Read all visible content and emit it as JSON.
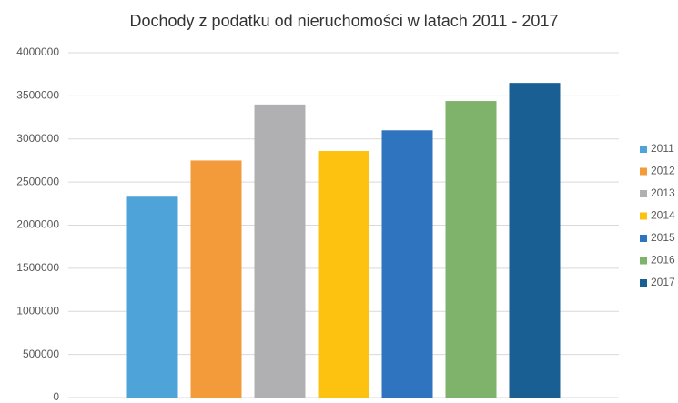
{
  "chart_data": {
    "type": "bar",
    "title": "Dochody z podatku od nieruchomości w latach 2011 - 2017",
    "categories": [
      null
    ],
    "series": [
      {
        "name": "2011",
        "color": "#4ea3d9",
        "values": [
          2330000
        ]
      },
      {
        "name": "2012",
        "color": "#f39a3b",
        "values": [
          2750000
        ]
      },
      {
        "name": "2013",
        "color": "#b0b0b2",
        "values": [
          3400000
        ]
      },
      {
        "name": "2014",
        "color": "#fdc20f",
        "values": [
          2860000
        ]
      },
      {
        "name": "2015",
        "color": "#2f74be",
        "values": [
          3100000
        ]
      },
      {
        "name": "2016",
        "color": "#7fb26a",
        "values": [
          3440000
        ]
      },
      {
        "name": "2017",
        "color": "#1a5f93",
        "values": [
          3650000
        ]
      }
    ],
    "ylim": [
      0,
      4000000
    ],
    "yticks": [
      0,
      500000,
      1000000,
      1500000,
      2000000,
      2500000,
      3000000,
      3500000,
      4000000
    ],
    "grid": true,
    "legend": "right"
  }
}
